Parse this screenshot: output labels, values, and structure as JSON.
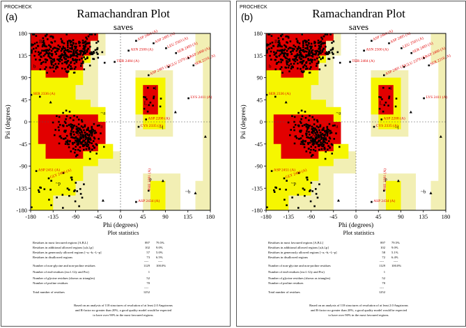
{
  "header": "PROCHECK",
  "plot_title": "Ramachandran Plot",
  "chart_data": [
    {
      "type": "scatter",
      "panel_label": "(a)",
      "title": "Ramachandran Plot",
      "subtitle": "saves",
      "xlabel": "Phi (degrees)",
      "ylabel": "Psi (degrees)",
      "xlim": [
        -180,
        180
      ],
      "ylim": [
        -180,
        180
      ],
      "xticks": [
        "-180",
        "-135",
        "-90",
        "-45",
        "0",
        "45",
        "90",
        "135",
        "180"
      ],
      "yticks": [
        "180",
        "135",
        "90",
        "45",
        "0",
        "-45",
        "-90",
        "-135",
        "-180"
      ],
      "region_labels": [
        {
          "text": "B",
          "phi": -160,
          "psi": 160
        },
        {
          "text": "b",
          "phi": -172,
          "psi": 110
        },
        {
          "text": "A",
          "phi": -85,
          "psi": -30
        },
        {
          "text": "a",
          "phi": -38,
          "psi": -12
        },
        {
          "text": "~a",
          "phi": -35,
          "psi": 15
        },
        {
          "text": "L",
          "phi": 50,
          "psi": 35
        },
        {
          "text": "l",
          "phi": 70,
          "psi": 65
        },
        {
          "text": "~l",
          "phi": 82,
          "psi": -15
        },
        {
          "text": "~p",
          "phi": -125,
          "psi": -128
        },
        {
          "text": "~b",
          "phi": 135,
          "psi": -145
        },
        {
          "text": "p",
          "phi": 60,
          "psi": -120
        }
      ],
      "outlier_labels": [
        "ASP 2484 (A)",
        "ASP 2495 (A)",
        "LEU 2503 (A)",
        "ASN 2500 (A)",
        "SER 2493 (A)",
        "ASP 2460 (A)",
        "THR 2484 (A)",
        "LYS 2411 (A)",
        "SER 2336 (A)",
        "ASP 2208 (A)",
        "CYS 2335 (A)",
        "ASP 2451 (A)",
        "GLY 2490 (A)",
        "PHE 2291 (A)",
        "ASP 2434 (A)",
        "SER 2218 (A)",
        "GLU 2379 (A)",
        "ASP 2401 (A)"
      ],
      "statistics": {
        "title": "Plot statistics",
        "rows": [
          {
            "label": "Residues in most favoured regions [A,B,L]",
            "count": "897",
            "pct": "79.5%"
          },
          {
            "label": "Residues in additional allowed regions [a,b,l,p]",
            "count": "102",
            "pct": "9.0%"
          },
          {
            "label": "Residues in generously allowed regions [~a,~b,~l,~p]",
            "count": "57",
            "pct": "5.0%"
          },
          {
            "label": "Residues in disallowed regions",
            "count": "73",
            "pct": "6.5%"
          },
          {
            "label": "Number of non-glycine and non-proline residues",
            "count": "1129",
            "pct": "100.0%"
          },
          {
            "label": "Number of end-residues (excl. Gly and Pro)",
            "count": "1",
            "pct": ""
          },
          {
            "label": "Number of glycine residues (shown as triangles)",
            "count": "52",
            "pct": ""
          },
          {
            "label": "Number of proline residues",
            "count": "70",
            "pct": ""
          },
          {
            "label": "Total number of residues",
            "count": "1252",
            "pct": ""
          }
        ],
        "divider": "----",
        "footnote": [
          "Based on an analysis of 118 structures of resolution of at least 2.0 Angstroms",
          "and R-factor no greater than 20%, a good quality model would be expected",
          "to have over 90% in the most favoured regions."
        ]
      }
    },
    {
      "type": "scatter",
      "panel_label": "(b)",
      "title": "Ramachandran Plot",
      "subtitle": "saves",
      "xlabel": "Phi (degrees)",
      "ylabel": "Psi (degrees)",
      "xlim": [
        -180,
        180
      ],
      "ylim": [
        -180,
        180
      ],
      "xticks": [
        "-180",
        "-135",
        "-90",
        "-45",
        "0",
        "45",
        "90",
        "135",
        "180"
      ],
      "yticks": [
        "180",
        "135",
        "90",
        "45",
        "0",
        "-45",
        "-90",
        "-135",
        "-180"
      ],
      "region_labels": [
        {
          "text": "B",
          "phi": -160,
          "psi": 160
        },
        {
          "text": "b",
          "phi": -172,
          "psi": 110
        },
        {
          "text": "A",
          "phi": -85,
          "psi": -30
        },
        {
          "text": "a",
          "phi": -38,
          "psi": -12
        },
        {
          "text": "~a",
          "phi": -35,
          "psi": 15
        },
        {
          "text": "L",
          "phi": 50,
          "psi": 35
        },
        {
          "text": "l",
          "phi": 70,
          "psi": 65
        },
        {
          "text": "~l",
          "phi": 82,
          "psi": -15
        },
        {
          "text": "~p",
          "phi": -125,
          "psi": -128
        },
        {
          "text": "~b",
          "phi": 135,
          "psi": -145
        },
        {
          "text": "p",
          "phi": 60,
          "psi": -120
        }
      ],
      "outlier_labels": [
        "ASP 2484 (A)",
        "ASP 2495 (A)",
        "LEU 2503 (A)",
        "ASN 2500 (A)",
        "SER 2493 (A)",
        "ASP 2460 (A)",
        "THR 2484 (A)",
        "LYS 2411 (A)",
        "SER 2336 (A)",
        "ASP 2208 (A)",
        "CYS 2335 (A)",
        "ASP 2451 (A)",
        "GLY 2490 (A)",
        "PHE 2291 (A)",
        "ASP 2434 (A)",
        "SER 2218 (A)",
        "GLU 2379 (A)",
        "ASP 2401 (A)"
      ],
      "statistics": {
        "title": "Plot statistics",
        "rows": [
          {
            "label": "Residues in most favoured regions [A,B,L]",
            "count": "897",
            "pct": "79.5%"
          },
          {
            "label": "Residues in additional allowed regions [a,b,l,p]",
            "count": "102",
            "pct": "9.0%"
          },
          {
            "label": "Residues in generously allowed regions [~a,~b,~l,~p]",
            "count": "58",
            "pct": "5.1%"
          },
          {
            "label": "Residues in disallowed regions",
            "count": "72",
            "pct": "6.4%"
          },
          {
            "label": "Number of non-glycine and non-proline residues",
            "count": "1129",
            "pct": "100.0%"
          },
          {
            "label": "Number of end-residues (excl. Gly and Pro)",
            "count": "1",
            "pct": ""
          },
          {
            "label": "Number of glycine residues (shown as triangles)",
            "count": "52",
            "pct": ""
          },
          {
            "label": "Number of proline residues",
            "count": "70",
            "pct": ""
          },
          {
            "label": "Total number of residues",
            "count": "1252",
            "pct": ""
          }
        ],
        "divider": "----",
        "footnote": [
          "Based on an analysis of 118 structures of resolution of at least 2.0 Angstroms",
          "and R-factor no greater than 20%, a good quality model would be expected",
          "to have over 90% in the most favoured regions."
        ]
      }
    }
  ],
  "colors": {
    "favoured": "#e20000",
    "additional": "#f6f600",
    "generous": "#f2efb4",
    "disallowed": "#ffffff",
    "points": "#000000",
    "outlier_text": "#e00000"
  }
}
